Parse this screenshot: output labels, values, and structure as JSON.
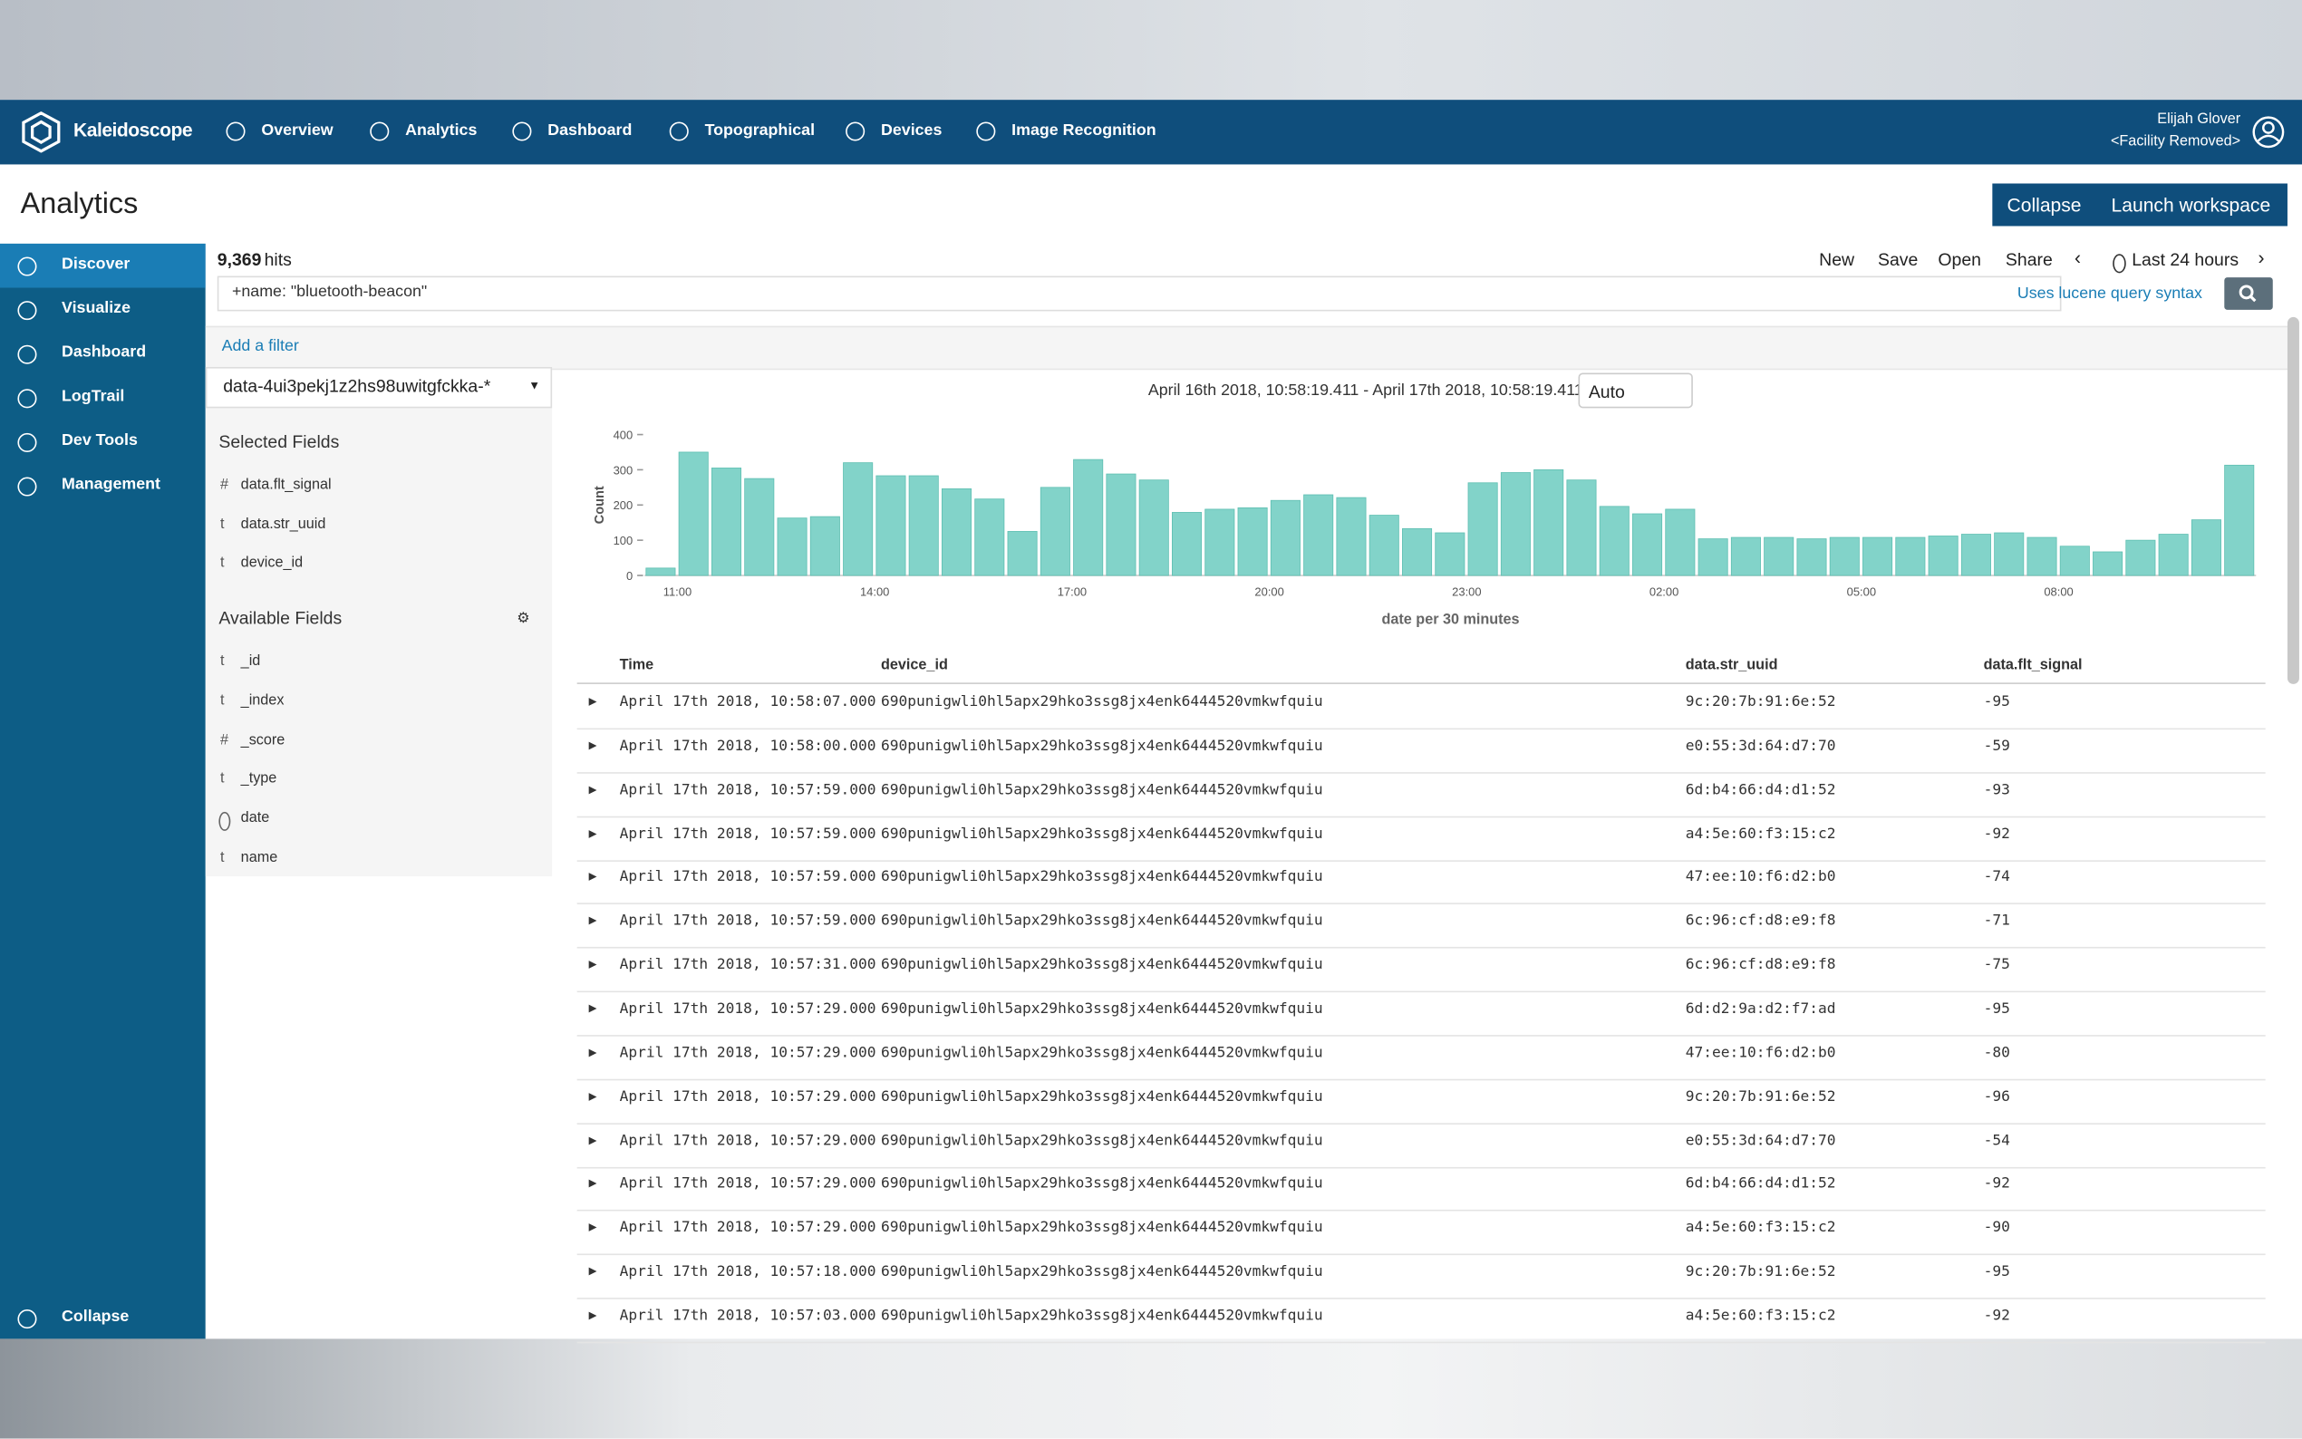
{
  "app": {
    "brand": "Kaleidoscope",
    "nav": [
      "Overview",
      "Analytics",
      "Dashboard",
      "Topographical",
      "Devices",
      "Image Recognition"
    ],
    "user_name": "Elijah Glover",
    "user_facility": "<Facility Removed>"
  },
  "page": {
    "title": "Analytics",
    "buttons": [
      "Collapse",
      "Launch workspace"
    ]
  },
  "sidebar": {
    "items": [
      "Discover",
      "Visualize",
      "Dashboard",
      "LogTrail",
      "Dev Tools",
      "Management"
    ],
    "collapse": "Collapse"
  },
  "toolbar": {
    "hits_count": "9,369",
    "hits_label": "hits",
    "actions": [
      "New",
      "Save",
      "Open",
      "Share"
    ],
    "time_range": "Last 24 hours"
  },
  "query": {
    "text": "+name: \"bluetooth-beacon\"",
    "syntax_link": "Uses lucene query syntax"
  },
  "filter": {
    "add": "Add a filter"
  },
  "fields": {
    "index_pattern": "data-4ui3pekj1z2hs98uwitgfckka-*",
    "selected_title": "Selected Fields",
    "selected": [
      {
        "type": "#",
        "name": "data.flt_signal"
      },
      {
        "type": "t",
        "name": "data.str_uuid"
      },
      {
        "type": "t",
        "name": "device_id"
      }
    ],
    "available_title": "Available Fields",
    "available": [
      {
        "type": "t",
        "name": "_id"
      },
      {
        "type": "t",
        "name": "_index"
      },
      {
        "type": "#",
        "name": "_score"
      },
      {
        "type": "t",
        "name": "_type"
      },
      {
        "name": "date"
      },
      {
        "type": "t",
        "name": "name"
      }
    ]
  },
  "range": {
    "text": "April 16th 2018, 10:58:19.411 - April 17th 2018, 10:58:19.411 —",
    "interval": "Auto"
  },
  "chart_data": {
    "type": "bar",
    "x_label": "date per 30 minutes",
    "y_label": "Count",
    "color": "#82d3c9",
    "categories": [
      null,
      "11:00",
      null,
      null,
      null,
      null,
      null,
      "14:00",
      null,
      null,
      null,
      null,
      null,
      "17:00",
      null,
      null,
      null,
      null,
      null,
      "20:00",
      null,
      null,
      null,
      null,
      null,
      "23:00",
      null,
      null,
      null,
      null,
      null,
      "02:00",
      null,
      null,
      null,
      null,
      null,
      "05:00",
      null,
      null,
      null,
      null,
      null,
      "08:00",
      null,
      null,
      null,
      null,
      null
    ],
    "values": [
      21,
      350,
      305,
      275,
      163,
      167,
      320,
      283,
      283,
      246,
      217,
      125,
      250,
      329,
      288,
      271,
      179,
      188,
      192,
      213,
      229,
      221,
      171,
      133,
      121,
      263,
      292,
      300,
      271,
      196,
      175,
      188,
      104,
      108,
      108,
      104,
      108,
      108,
      108,
      112,
      117,
      121,
      108,
      83,
      67,
      100,
      117,
      158,
      313
    ],
    "ylim": [
      0,
      400
    ],
    "yticks": [
      0,
      100,
      200,
      300,
      400
    ]
  },
  "table": {
    "columns": [
      "Time",
      "device_id",
      "data.str_uuid",
      "data.flt_signal"
    ],
    "rows": [
      [
        "April 17th 2018, 10:58:07.000",
        "690punigwli0hl5apx29hko3ssg8jx4enk6444520vmkwfquiu",
        "9c:20:7b:91:6e:52",
        -95
      ],
      [
        "April 17th 2018, 10:58:00.000",
        "690punigwli0hl5apx29hko3ssg8jx4enk6444520vmkwfquiu",
        "e0:55:3d:64:d7:70",
        -59
      ],
      [
        "April 17th 2018, 10:57:59.000",
        "690punigwli0hl5apx29hko3ssg8jx4enk6444520vmkwfquiu",
        "6d:b4:66:d4:d1:52",
        -93
      ],
      [
        "April 17th 2018, 10:57:59.000",
        "690punigwli0hl5apx29hko3ssg8jx4enk6444520vmkwfquiu",
        "a4:5e:60:f3:15:c2",
        -92
      ],
      [
        "April 17th 2018, 10:57:59.000",
        "690punigwli0hl5apx29hko3ssg8jx4enk6444520vmkwfquiu",
        "47:ee:10:f6:d2:b0",
        -74
      ],
      [
        "April 17th 2018, 10:57:59.000",
        "690punigwli0hl5apx29hko3ssg8jx4enk6444520vmkwfquiu",
        "6c:96:cf:d8:e9:f8",
        -71
      ],
      [
        "April 17th 2018, 10:57:31.000",
        "690punigwli0hl5apx29hko3ssg8jx4enk6444520vmkwfquiu",
        "6c:96:cf:d8:e9:f8",
        -75
      ],
      [
        "April 17th 2018, 10:57:29.000",
        "690punigwli0hl5apx29hko3ssg8jx4enk6444520vmkwfquiu",
        "6d:d2:9a:d2:f7:ad",
        -95
      ],
      [
        "April 17th 2018, 10:57:29.000",
        "690punigwli0hl5apx29hko3ssg8jx4enk6444520vmkwfquiu",
        "47:ee:10:f6:d2:b0",
        -80
      ],
      [
        "April 17th 2018, 10:57:29.000",
        "690punigwli0hl5apx29hko3ssg8jx4enk6444520vmkwfquiu",
        "9c:20:7b:91:6e:52",
        -96
      ],
      [
        "April 17th 2018, 10:57:29.000",
        "690punigwli0hl5apx29hko3ssg8jx4enk6444520vmkwfquiu",
        "e0:55:3d:64:d7:70",
        -54
      ],
      [
        "April 17th 2018, 10:57:29.000",
        "690punigwli0hl5apx29hko3ssg8jx4enk6444520vmkwfquiu",
        "6d:b4:66:d4:d1:52",
        -92
      ],
      [
        "April 17th 2018, 10:57:29.000",
        "690punigwli0hl5apx29hko3ssg8jx4enk6444520vmkwfquiu",
        "a4:5e:60:f3:15:c2",
        -90
      ],
      [
        "April 17th 2018, 10:57:18.000",
        "690punigwli0hl5apx29hko3ssg8jx4enk6444520vmkwfquiu",
        "9c:20:7b:91:6e:52",
        -95
      ],
      [
        "April 17th 2018, 10:57:03.000",
        "690punigwli0hl5apx29hko3ssg8jx4enk6444520vmkwfquiu",
        "a4:5e:60:f3:15:c2",
        -92
      ]
    ]
  }
}
